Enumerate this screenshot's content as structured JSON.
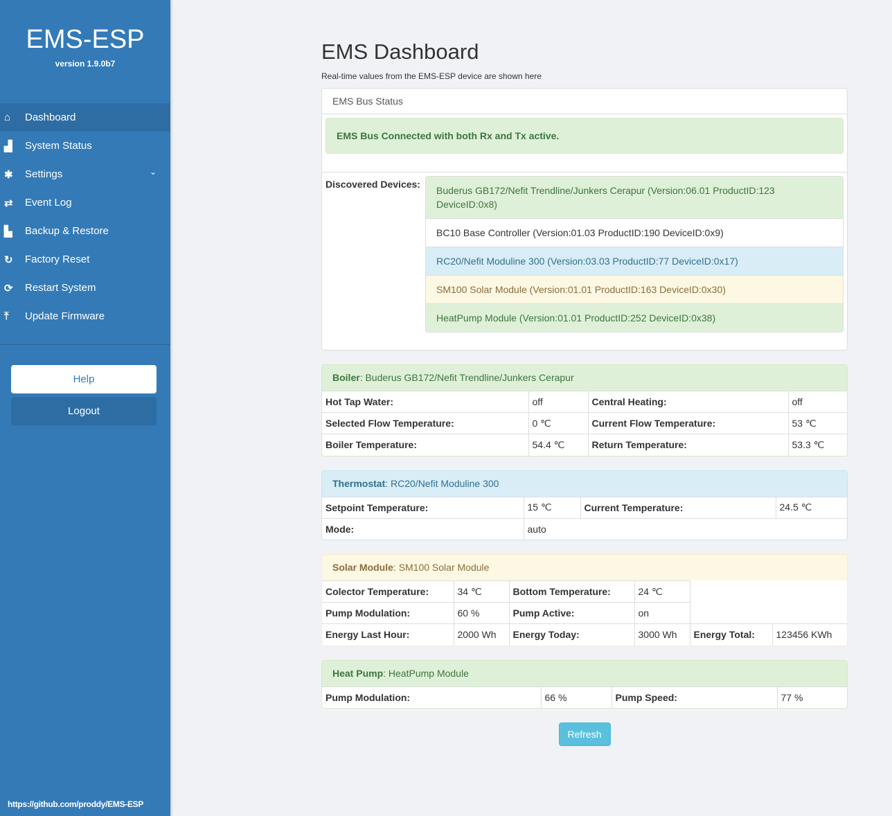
{
  "sidebar": {
    "brand": "EMS-ESP",
    "version": "version 1.9.0b7",
    "items": [
      {
        "label": "Dashboard",
        "icon": "home-icon",
        "glyph": "⌂"
      },
      {
        "label": "System Status",
        "icon": "bar-chart-icon",
        "glyph": "▟"
      },
      {
        "label": "Settings",
        "icon": "gear-icon",
        "glyph": "✱"
      },
      {
        "label": "Event Log",
        "icon": "exchange-icon",
        "glyph": "⇄"
      },
      {
        "label": "Backup & Restore",
        "icon": "save-icon",
        "glyph": "▙"
      },
      {
        "label": "Factory Reset",
        "icon": "rotate-icon",
        "glyph": "↻"
      },
      {
        "label": "Restart System",
        "icon": "refresh-icon",
        "glyph": "⟳"
      },
      {
        "label": "Update Firmware",
        "icon": "upload-icon",
        "glyph": "⤒"
      }
    ],
    "help": "Help",
    "logout": "Logout",
    "footer": "https://github.com/proddy/EMS-ESP"
  },
  "main": {
    "title": "EMS Dashboard",
    "subtitle": "Real-time values from the EMS-ESP device are shown here",
    "bus": {
      "heading": "EMS Bus Status",
      "status": "EMS Bus Connected with both Rx and Tx active.",
      "devices_label": "Discovered Devices:",
      "devices": [
        {
          "text": "Buderus GB172/Nefit Trendline/Junkers Cerapur (Version:06.01 ProductID:123 DeviceID:0x8)",
          "style": "s"
        },
        {
          "text": "BC10 Base Controller (Version:01.03 ProductID:190 DeviceID:0x9)",
          "style": ""
        },
        {
          "text": "RC20/Nefit Moduline 300 (Version:03.03 ProductID:77 DeviceID:0x17)",
          "style": "i"
        },
        {
          "text": "SM100 Solar Module (Version:01.01 ProductID:163 DeviceID:0x30)",
          "style": "w"
        },
        {
          "text": "HeatPump Module (Version:01.01 ProductID:252 DeviceID:0x38)",
          "style": "s"
        }
      ]
    },
    "panels": [
      {
        "id": "boiler",
        "style": "s",
        "label": "Boiler",
        "name": "Buderus GB172/Nefit Trendline/Junkers Cerapur",
        "cols": [
          298,
          86,
          289,
          87
        ],
        "rows": [
          [
            "Hot Tap Water:",
            "off",
            "Central Heating:",
            "off"
          ],
          [
            "Selected Flow Temperature:",
            "0 ℃",
            "Current Flow Temperature:",
            "53 ℃"
          ],
          [
            "Boiler Temperature:",
            "54.4 ℃",
            "Return Temperature:",
            "53.3 ℃"
          ]
        ]
      },
      {
        "id": "thermostat",
        "style": "i",
        "label": "Thermostat",
        "name": "RC20/Nefit Moduline 300",
        "cols": [
          291,
          82,
          282,
          105
        ],
        "rows": [
          [
            "Setpoint Temperature:",
            "15 ℃",
            "Current Temperature:",
            "24.5 ℃"
          ],
          [
            "Mode:",
            "auto"
          ]
        ]
      },
      {
        "id": "solar",
        "style": "w",
        "label": "Solar Module",
        "name": "SM100 Solar Module",
        "cols": [
          190,
          80,
          181,
          80,
          119,
          110
        ],
        "rows": [
          [
            "Colector Temperature:",
            "34 ℃",
            "Bottom Temperature:",
            "24 ℃"
          ],
          [
            "Pump Modulation:",
            "60 %",
            "Pump Active:",
            "on"
          ],
          [
            "Energy Last Hour:",
            "2000 Wh",
            "Energy Today:",
            "3000 Wh",
            "Energy Total:",
            "123456 KWh"
          ]
        ]
      },
      {
        "id": "heatpump",
        "style": "s",
        "label": "Heat Pump",
        "name": "HeatPump Module",
        "cols": [
          316,
          102,
          239,
          103
        ],
        "rows": [
          [
            "Pump Modulation:",
            "66 %",
            "Pump Speed:",
            "77 %"
          ]
        ]
      }
    ],
    "refresh": "Refresh"
  }
}
